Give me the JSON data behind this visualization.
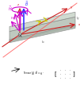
{
  "figure_bg": "#ffffff",
  "slab_face_color": "#b8c4b8",
  "slab_top_color": "#c8d4c8",
  "slab_bot_color": "#a8b4a8",
  "slab_edge_color": "#888888",
  "arrow_purple": "#cc00cc",
  "arrow_blue": "#3333ff",
  "arrow_yellow": "#cccc00",
  "axis_color": "#cc2222",
  "formula_color": "#000000",
  "ox": 2.5,
  "oy": 4.0
}
